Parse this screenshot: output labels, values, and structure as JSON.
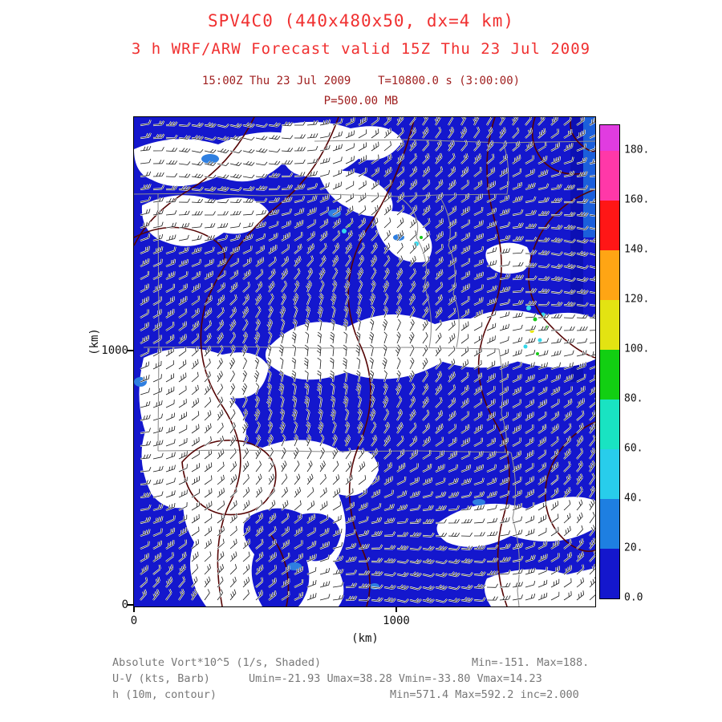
{
  "header": {
    "model_title": "SPV4C0 (440x480x50, dx=4 km)",
    "forecast_title": "3 h WRF/ARW Forecast valid 15Z Thu 23 Jul 2009",
    "valid_line": "15:00Z Thu 23 Jul 2009    T=10800.0 s (3:00:00)",
    "level_line": "P=500.00 MB"
  },
  "axes": {
    "x_label": "(km)",
    "y_label": "(km)",
    "x_ticks": [
      "0",
      "1000"
    ],
    "y_ticks": [
      "0",
      "1000"
    ]
  },
  "colorbar": {
    "tick_labels": [
      "0.0",
      "20.",
      "40.",
      "60.",
      "80.",
      "100.",
      "120.",
      "140.",
      "160.",
      "180."
    ],
    "segment_colors": [
      "#1417cd",
      "#1e7fe1",
      "#28cdeb",
      "#19e3c2",
      "#12cf12",
      "#e3e312",
      "#ffa514",
      "#ff1616",
      "#ff38a8"
    ],
    "top_color": "#e03ce0"
  },
  "footer": {
    "rows": [
      {
        "label": "Absolute Vort*10^5 (1/s, Shaded)",
        "stats": "Min=-151. Max=188."
      },
      {
        "label": "U-V (kts, Barb)",
        "stats": "Umin=-21.93 Umax=38.28 Vmin=-33.80 Vmax=14.23"
      },
      {
        "label": "h (10m, contour)",
        "stats": "Min=571.4 Max=592.2 inc=2.000"
      }
    ]
  },
  "colors": {
    "title_red": "#f03030",
    "maroon": "#a02020",
    "footer_gray": "#787878",
    "map_blue": "#1417cd",
    "contour_maroon": "#550404",
    "state_border_gray": "#909090"
  },
  "chart_data": {
    "type": "heatmap",
    "title": "SPV4C0 (440x480x50, dx=4 km)",
    "subtitle": "3 h WRF/ARW Forecast valid 15Z Thu 23 Jul 2009",
    "valid_time": "15:00Z Thu 23 Jul 2009",
    "forecast_lead": "T=10800.0 s (3:00:00)",
    "level": "P=500.00 MB",
    "xlabel": "(km)",
    "ylabel": "(km)",
    "x_ticks": [
      0,
      1000
    ],
    "y_ticks": [
      0,
      1000
    ],
    "legend_position": "right",
    "shaded_field": {
      "name": "Absolute Vort*10^5",
      "units": "1/s",
      "style": "Shaded",
      "min": -151,
      "max": 188,
      "colorbar_levels": [
        0,
        20,
        40,
        60,
        80,
        100,
        120,
        140,
        160,
        180
      ]
    },
    "wind_field": {
      "name": "U-V",
      "units": "kts",
      "style": "Barb",
      "umin": -21.93,
      "umax": 38.28,
      "vmin": -33.8,
      "vmax": 14.23
    },
    "height_field": {
      "name": "h",
      "units": "10m",
      "style": "contour",
      "min": 571.4,
      "max": 592.2,
      "inc": 2.0
    }
  }
}
